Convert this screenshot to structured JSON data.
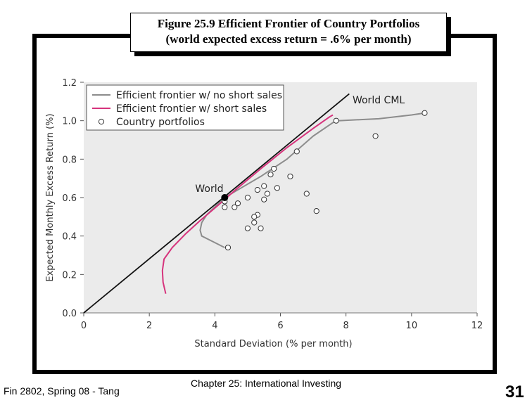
{
  "slide": {
    "title_line1": "Figure 25.9 Efficient Frontier of Country Portfolios",
    "title_line2": "(world expected excess return = .6% per month)",
    "footer_left": "Fin 2802, Spring 08 - Tang",
    "footer_center": "Chapter 25: International Investing",
    "page_number": "31"
  },
  "chart_data": {
    "type": "scatter",
    "xlabel": "Standard Deviation (% per month)",
    "ylabel": "Expected Monthly Excess Return (%)",
    "xlim": [
      0,
      12
    ],
    "ylim": [
      0,
      1.2
    ],
    "xticks": [
      "0",
      "2",
      "4",
      "6",
      "8",
      "10",
      "12"
    ],
    "yticks": [
      "0.0",
      "0.2",
      "0.4",
      "0.6",
      "0.8",
      "1.0",
      "1.2"
    ],
    "legend_position": "top-left",
    "series": [
      {
        "name": "Efficient frontier w/ no short sales",
        "kind": "line",
        "color": "#8c8c8c",
        "points": [
          [
            4.3,
            0.34
          ],
          [
            3.95,
            0.37
          ],
          [
            3.6,
            0.4
          ],
          [
            3.55,
            0.43
          ],
          [
            3.6,
            0.47
          ],
          [
            3.75,
            0.51
          ],
          [
            4.05,
            0.56
          ],
          [
            4.3,
            0.6
          ],
          [
            4.8,
            0.65
          ],
          [
            5.4,
            0.71
          ],
          [
            6.2,
            0.8
          ],
          [
            7.0,
            0.92
          ],
          [
            7.6,
            0.99
          ],
          [
            7.75,
            1.0
          ],
          [
            9.0,
            1.01
          ],
          [
            10.0,
            1.03
          ],
          [
            10.4,
            1.04
          ]
        ]
      },
      {
        "name": "Efficient frontier w/ short sales",
        "kind": "line",
        "color": "#d6337c",
        "points": [
          [
            2.5,
            0.1
          ],
          [
            2.42,
            0.16
          ],
          [
            2.4,
            0.22
          ],
          [
            2.45,
            0.28
          ],
          [
            2.7,
            0.34
          ],
          [
            3.1,
            0.41
          ],
          [
            3.55,
            0.48
          ],
          [
            4.1,
            0.56
          ],
          [
            4.7,
            0.65
          ],
          [
            5.4,
            0.75
          ],
          [
            6.2,
            0.86
          ],
          [
            7.0,
            0.96
          ],
          [
            7.5,
            1.02
          ],
          [
            7.6,
            1.03
          ]
        ]
      },
      {
        "name": "Country portfolios",
        "kind": "scatter",
        "marker": "open-circle",
        "points": [
          [
            7.7,
            1.0
          ],
          [
            10.4,
            1.04
          ],
          [
            8.9,
            0.92
          ],
          [
            6.5,
            0.84
          ],
          [
            5.8,
            0.75
          ],
          [
            5.7,
            0.72
          ],
          [
            6.3,
            0.71
          ],
          [
            5.5,
            0.66
          ],
          [
            5.9,
            0.65
          ],
          [
            5.3,
            0.64
          ],
          [
            5.6,
            0.62
          ],
          [
            6.8,
            0.62
          ],
          [
            5.0,
            0.6
          ],
          [
            5.5,
            0.59
          ],
          [
            4.7,
            0.57
          ],
          [
            4.3,
            0.58
          ],
          [
            4.3,
            0.55
          ],
          [
            4.6,
            0.55
          ],
          [
            7.1,
            0.53
          ],
          [
            5.3,
            0.51
          ],
          [
            5.2,
            0.5
          ],
          [
            5.2,
            0.47
          ],
          [
            5.0,
            0.44
          ],
          [
            5.4,
            0.44
          ],
          [
            4.4,
            0.34
          ]
        ]
      },
      {
        "name": "World CML",
        "kind": "line",
        "color": "#111111",
        "points": [
          [
            0,
            0
          ],
          [
            8.1,
            1.14
          ]
        ]
      },
      {
        "name": "World",
        "kind": "point",
        "marker": "filled-circle",
        "points": [
          [
            4.3,
            0.6
          ]
        ]
      }
    ],
    "annotations": [
      {
        "text": "World CML",
        "x": 8.2,
        "y": 1.09
      },
      {
        "text": "World",
        "x": 3.4,
        "y": 0.63
      }
    ]
  }
}
